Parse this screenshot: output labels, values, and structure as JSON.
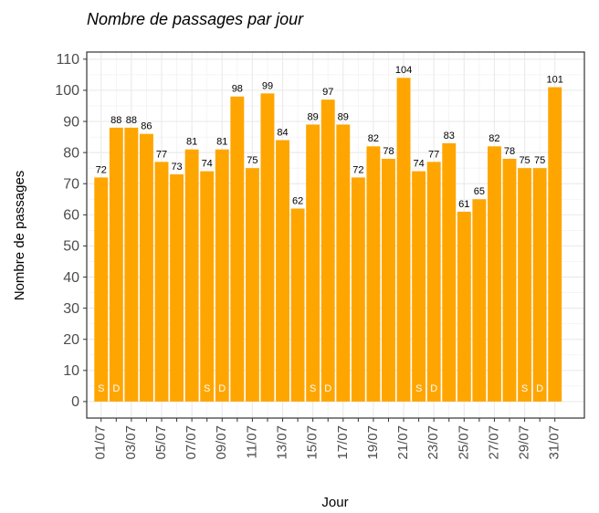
{
  "chart_data": {
    "type": "bar",
    "title": "Nombre de passages par jour",
    "x_label": "Jour",
    "y_label": "Nombre de passages",
    "categories": [
      "01/07",
      null,
      "03/07",
      null,
      "05/07",
      null,
      "07/07",
      null,
      "09/07",
      null,
      "11/07",
      null,
      "13/07",
      null,
      "15/07",
      null,
      "17/07",
      null,
      "19/07",
      null,
      "21/07",
      null,
      "23/07",
      null,
      "25/07",
      null,
      "27/07",
      null,
      "29/07",
      null,
      "31/07"
    ],
    "values": [
      72,
      88,
      88,
      86,
      77,
      73,
      81,
      74,
      81,
      98,
      75,
      99,
      84,
      62,
      89,
      97,
      89,
      72,
      82,
      78,
      104,
      74,
      77,
      83,
      61,
      65,
      82,
      78,
      75,
      75,
      101
    ],
    "day_labels": [
      "S",
      "D",
      null,
      null,
      null,
      null,
      null,
      "S",
      "D",
      null,
      null,
      null,
      null,
      null,
      "S",
      "D",
      null,
      null,
      null,
      null,
      null,
      "S",
      "D",
      null,
      null,
      null,
      null,
      null,
      "S",
      "D",
      null
    ],
    "color": "#ffa500",
    "ylim": [
      -5.3,
      112.3
    ],
    "yticks": [
      0,
      10,
      20,
      30,
      40,
      50,
      60,
      70,
      80,
      90,
      100,
      110
    ],
    "grid": true
  }
}
